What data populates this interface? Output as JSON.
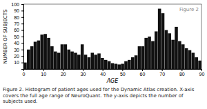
{
  "chart_data": {
    "type": "histogram",
    "bins": [
      0,
      1.698113,
      3.396226,
      5.09434,
      6.792453,
      8.490566,
      10.188679,
      11.886792,
      13.584906,
      15.283019,
      16.981132,
      18.679245,
      20.377358,
      22.075472,
      23.773585,
      25.471698,
      27.169811,
      28.867925,
      30.566038,
      32.264151,
      33.962264,
      35.660377,
      37.358491,
      39.056604,
      40.754717,
      42.45283,
      44.150943,
      45.849057,
      47.54717,
      49.245283,
      50.943396,
      52.641509,
      54.339623,
      56.037736,
      57.735849,
      59.433962,
      61.132075,
      62.830189,
      64.528302,
      66.226415,
      67.924528,
      69.622642,
      71.320755,
      73.018868,
      74.716981,
      76.415094,
      78.113208,
      79.811321,
      81.509434,
      83.207547,
      84.90566,
      86.603774,
      88.301887,
      90
    ],
    "values": [
      10,
      30,
      35,
      42,
      44,
      53,
      54,
      48,
      35,
      27,
      25,
      38,
      38,
      30,
      27,
      25,
      22,
      38,
      22,
      18,
      25,
      22,
      24,
      17,
      14,
      12,
      9,
      8,
      7,
      8,
      12,
      14,
      18,
      21,
      35,
      35,
      48,
      50,
      43,
      58,
      93,
      86,
      60,
      55,
      45,
      65,
      43,
      38,
      32,
      29,
      25,
      18,
      13
    ],
    "color": "#111111",
    "x_label": "AGE",
    "y_label": "NUMBER OF SUBJECTS",
    "annotations": [
      "Figure 2"
    ],
    "caption": "Figure 2. Histogram of patient ages used for the Dynamic Atlas creation. X-axis covers the full age range of NeuroQuant. The y-axis depicts the number of subjects used.",
    "xlim": [
      0,
      90
    ],
    "xticks": [
      0,
      10,
      20,
      30,
      40,
      50,
      60,
      70,
      80,
      90
    ],
    "ylim": [
      0,
      100
    ],
    "yticks": [
      10,
      20,
      30,
      40,
      50,
      60,
      70,
      80,
      90,
      100
    ],
    "grid": false
  }
}
